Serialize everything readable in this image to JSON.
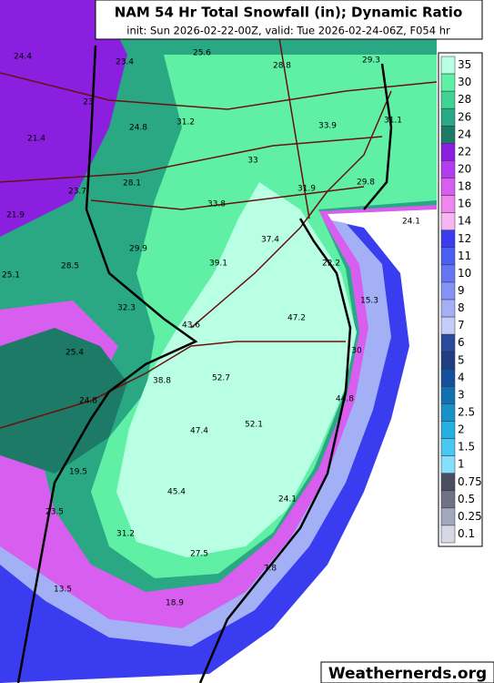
{
  "title": "NAM 54 Hr Total Snowfall (in); Dynamic Ratio",
  "subtitle": "init: Sun 2026-02-22-00Z, valid: Tue 2026-02-24-06Z, F054 hr",
  "legend": [
    {
      "value": 35,
      "color": "#b8ffe4"
    },
    {
      "value": 30,
      "color": "#5ff0a6"
    },
    {
      "value": 28,
      "color": "#3fd494"
    },
    {
      "value": 26,
      "color": "#2aa884"
    },
    {
      "value": 24,
      "color": "#1d7a66"
    },
    {
      "value": 22,
      "color": "#8a1fe0"
    },
    {
      "value": 20,
      "color": "#b43cf0"
    },
    {
      "value": 18,
      "color": "#d85ef0"
    },
    {
      "value": 16,
      "color": "#ee86ee"
    },
    {
      "value": 14,
      "color": "#f6b6f2"
    },
    {
      "value": 12,
      "color": "#3a3cf0"
    },
    {
      "value": 11,
      "color": "#4c5ef2"
    },
    {
      "value": 10,
      "color": "#6476f2"
    },
    {
      "value": 9,
      "color": "#8392f4"
    },
    {
      "value": 8,
      "color": "#a4b0f6"
    },
    {
      "value": 7,
      "color": "#c6ccfa"
    },
    {
      "value": 6,
      "color": "#2c4a9a"
    },
    {
      "value": 5,
      "color": "#203e82"
    },
    {
      "value": 4,
      "color": "#14509c"
    },
    {
      "value": 3,
      "color": "#1270b0"
    },
    {
      "value": 2.5,
      "color": "#1a90c8"
    },
    {
      "value": 2,
      "color": "#26b0e2"
    },
    {
      "value": 1.5,
      "color": "#48c8f2"
    },
    {
      "value": 1,
      "color": "#86e0fc"
    },
    {
      "value": 0.75,
      "color": "#4a4e60"
    },
    {
      "value": 0.5,
      "color": "#6e7284"
    },
    {
      "value": 0.25,
      "color": "#a4a8bc"
    },
    {
      "value": 0.1,
      "color": "#d6d8e6"
    }
  ],
  "point_labels": [
    24.4,
    23.4,
    25.6,
    28.8,
    29.3,
    23,
    21.4,
    24.8,
    31.2,
    33.9,
    31.1,
    33,
    28.1,
    23.7,
    31.9,
    29.8,
    33.8,
    21.9,
    37.4,
    24.1,
    29.9,
    39.1,
    22.2,
    25.1,
    28.5,
    15.3,
    32.3,
    47.2,
    43.6,
    25.4,
    30,
    38.8,
    52.7,
    24.8,
    44.8,
    52.1,
    47.4,
    19.5,
    45.4,
    24.1,
    23.5,
    31.2,
    27.5,
    7.8,
    13.5,
    18.9
  ],
  "watermark": "Weathernerds.org"
}
